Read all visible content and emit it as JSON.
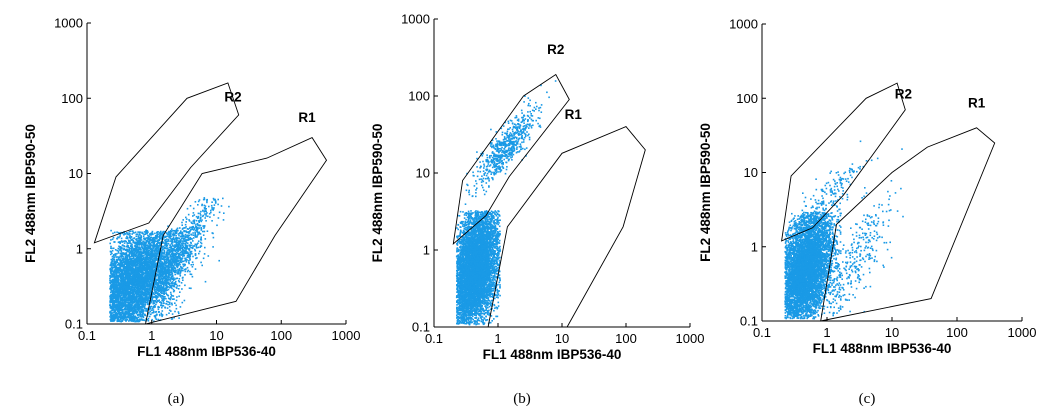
{
  "chart_data": [
    {
      "type": "scatter",
      "caption": "(a)",
      "xlabel": "FL1  488nm IBP536-40",
      "ylabel": "FL2  488nm IBP590-50",
      "xscale": "log",
      "yscale": "log",
      "xlim": [
        0.1,
        1000
      ],
      "ylim": [
        0.1,
        1000
      ],
      "xticks": [
        "0.1",
        "1",
        "10",
        "100",
        "1000"
      ],
      "yticks": [
        "0.1",
        "1",
        "10",
        "100",
        "1000"
      ],
      "point_color": "#1a9ae6",
      "gates": [
        {
          "name": "R2",
          "label_at": [
            18,
            90
          ],
          "polygon": [
            [
              0.13,
              1.2
            ],
            [
              0.28,
              9
            ],
            [
              3.5,
              100
            ],
            [
              15,
              160
            ],
            [
              22,
              60
            ],
            [
              4,
              12
            ],
            [
              0.9,
              2.2
            ]
          ]
        },
        {
          "name": "R1",
          "label_at": [
            250,
            48
          ],
          "polygon": [
            [
              0.8,
              0.1
            ],
            [
              1.5,
              1.5
            ],
            [
              6,
              10
            ],
            [
              60,
              16
            ],
            [
              300,
              30
            ],
            [
              500,
              15
            ],
            [
              80,
              1.5
            ],
            [
              20,
              0.2
            ]
          ]
        }
      ],
      "populations": [
        {
          "cx": 0.5,
          "cy": 0.35,
          "sx": 0.36,
          "sy": 0.42,
          "rho": 0.55,
          "n": 5200,
          "xmin": 0.22,
          "ymin": 0.11,
          "ymax": 1.8
        },
        {
          "cx": 2.4,
          "cy": 0.8,
          "sx": 0.32,
          "sy": 0.42,
          "rho": 0.9,
          "n": 750,
          "xmin": 1.2,
          "ymin": 0.1,
          "ymax": 5
        }
      ]
    },
    {
      "type": "scatter",
      "caption": "(b)",
      "xlabel": "FL1  488nm IBP536-40",
      "ylabel": "FL2  488nm IBP590-50",
      "xscale": "log",
      "yscale": "log",
      "xlim": [
        0.1,
        1000
      ],
      "ylim": [
        0.1,
        1000
      ],
      "xticks": [
        "0.1",
        "1",
        "10",
        "100",
        "1000"
      ],
      "yticks": [
        "0.1",
        "1",
        "10",
        "100",
        "1000"
      ],
      "point_color": "#1a9ae6",
      "gates": [
        {
          "name": "R2",
          "label_at": [
            8,
            350
          ],
          "polygon": [
            [
              0.2,
              1.2
            ],
            [
              0.28,
              8
            ],
            [
              2.5,
              100
            ],
            [
              8,
              190
            ],
            [
              13,
              90
            ],
            [
              1.5,
              9
            ],
            [
              0.65,
              2.8
            ]
          ]
        },
        {
          "name": "R1",
          "label_at": [
            15,
            50
          ],
          "polygon": [
            [
              0.7,
              0.1
            ],
            [
              1.4,
              2
            ],
            [
              10,
              18
            ],
            [
              100,
              40
            ],
            [
              200,
              20
            ],
            [
              90,
              2
            ],
            [
              12,
              0.1
            ]
          ]
        }
      ],
      "populations": [
        {
          "cx": 0.42,
          "cy": 0.6,
          "sx": 0.2,
          "sy": 0.42,
          "rho": 0.35,
          "n": 6000,
          "xmin": 0.22,
          "xmax": 1.05,
          "ymin": 0.11,
          "ymax": 3.3
        },
        {
          "cx": 1.3,
          "cy": 22,
          "sx": 0.25,
          "sy": 0.26,
          "rho": 0.85,
          "n": 650,
          "xmin": 0.27,
          "ymin": 4
        }
      ]
    },
    {
      "type": "scatter",
      "caption": "(c)",
      "xlabel": "FL1  488nm IBP536-40",
      "ylabel": "FL2  488nm IBP590-50",
      "xscale": "log",
      "yscale": "log",
      "xlim": [
        0.1,
        1000
      ],
      "ylim": [
        0.1,
        1000
      ],
      "xticks": [
        "0.1",
        "1",
        "10",
        "100",
        "1000"
      ],
      "yticks": [
        "0.1",
        "1",
        "10",
        "100",
        "1000"
      ],
      "point_color": "#1a9ae6",
      "gates": [
        {
          "name": "R2",
          "label_at": [
            15,
            100
          ],
          "polygon": [
            [
              0.2,
              1.2
            ],
            [
              0.28,
              9
            ],
            [
              4,
              100
            ],
            [
              12,
              160
            ],
            [
              16,
              70
            ],
            [
              1.8,
              5
            ],
            [
              0.6,
              1.8
            ]
          ]
        },
        {
          "name": "R1",
          "label_at": [
            200,
            75
          ],
          "polygon": [
            [
              0.8,
              0.1
            ],
            [
              1.4,
              2
            ],
            [
              10,
              10
            ],
            [
              35,
              22
            ],
            [
              200,
              40
            ],
            [
              380,
              25
            ],
            [
              40,
              0.2
            ]
          ]
        }
      ],
      "populations": [
        {
          "cx": 0.45,
          "cy": 0.5,
          "sx": 0.22,
          "sy": 0.4,
          "rho": 0.4,
          "n": 5600,
          "xmin": 0.22,
          "xmax": 1.6,
          "ymin": 0.11,
          "ymax": 3
        },
        {
          "cx": 0.9,
          "cy": 4,
          "sx": 0.3,
          "sy": 0.3,
          "rho": 0.85,
          "n": 200,
          "xmin": 0.25,
          "ymin": 1.5
        },
        {
          "cx": 2.5,
          "cy": 0.6,
          "sx": 0.3,
          "sy": 0.45,
          "rho": 0.8,
          "n": 280,
          "xmin": 1.2,
          "ymin": 0.11
        }
      ]
    }
  ]
}
